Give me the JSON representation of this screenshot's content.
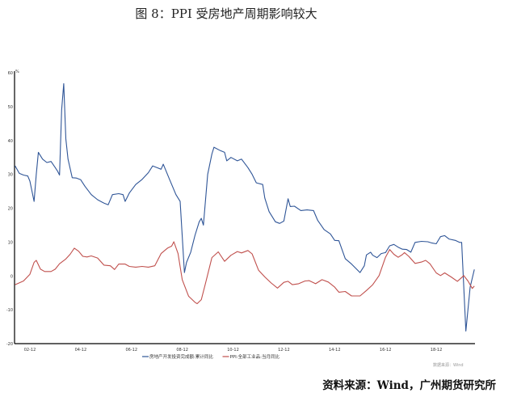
{
  "title": "图 8：PPI 受房地产周期影响较大",
  "source_note": "资料来源：Wind，广州期货研究所",
  "wind_note": "数据来源：Wind",
  "chart_data": {
    "type": "line",
    "title": "图 8：PPI 受房地产周期影响较大",
    "xlabel": "",
    "ylabel": "%",
    "ylim": [
      -20,
      60
    ],
    "yticks": [
      60,
      50,
      40,
      30,
      20,
      10,
      0,
      -10,
      -20
    ],
    "xticks": [
      "02-12",
      "04-12",
      "06-12",
      "08-12",
      "10-12",
      "12-12",
      "14-12",
      "16-12",
      "18-12"
    ],
    "grid": false,
    "legend_position": "bottom",
    "colors": {
      "series_1": "#2f5597",
      "series_2": "#c0504d"
    },
    "series": [
      {
        "name": "房地产开发投资完成额:累计同比",
        "color": "#2f5597",
        "points": [
          [
            "2002-05",
            32.5
          ],
          [
            "2002-07",
            30.3
          ],
          [
            "2002-09",
            29.8
          ],
          [
            "2002-11",
            29.5
          ],
          [
            "2002-12",
            28.0
          ],
          [
            "2003-02",
            22.0
          ],
          [
            "2003-03",
            30.0
          ],
          [
            "2003-04",
            36.5
          ],
          [
            "2003-06",
            34.5
          ],
          [
            "2003-08",
            33.5
          ],
          [
            "2003-10",
            33.8
          ],
          [
            "2003-12",
            32.0
          ],
          [
            "2004-01",
            31.0
          ],
          [
            "2004-02",
            29.8
          ],
          [
            "2004-03",
            49.0
          ],
          [
            "2004-04",
            56.8
          ],
          [
            "2004-05",
            40.5
          ],
          [
            "2004-06",
            34.5
          ],
          [
            "2004-08",
            29.0
          ],
          [
            "2004-10",
            28.9
          ],
          [
            "2004-12",
            28.4
          ],
          [
            "2005-02",
            26.5
          ],
          [
            "2005-05",
            24.0
          ],
          [
            "2005-08",
            22.5
          ],
          [
            "2005-11",
            21.5
          ],
          [
            "2006-01",
            21.0
          ],
          [
            "2006-03",
            24.0
          ],
          [
            "2006-06",
            24.3
          ],
          [
            "2006-08",
            24.0
          ],
          [
            "2006-09",
            22.0
          ],
          [
            "2006-11",
            24.5
          ],
          [
            "2007-02",
            27.0
          ],
          [
            "2007-05",
            28.5
          ],
          [
            "2007-08",
            30.5
          ],
          [
            "2007-10",
            32.5
          ],
          [
            "2007-12",
            32.0
          ],
          [
            "2008-02",
            31.5
          ],
          [
            "2008-03",
            33.0
          ],
          [
            "2008-06",
            28.5
          ],
          [
            "2008-09",
            24.0
          ],
          [
            "2008-11",
            22.0
          ],
          [
            "2009-01",
            1.0
          ],
          [
            "2009-02",
            4.0
          ],
          [
            "2009-04",
            7.0
          ],
          [
            "2009-06",
            12.0
          ],
          [
            "2009-08",
            16.0
          ],
          [
            "2009-09",
            17.0
          ],
          [
            "2009-10",
            15.0
          ],
          [
            "2009-12",
            30.0
          ],
          [
            "2010-02",
            36.0
          ],
          [
            "2010-03",
            38.0
          ],
          [
            "2010-06",
            37.0
          ],
          [
            "2010-08",
            36.5
          ],
          [
            "2010-09",
            34.0
          ],
          [
            "2010-11",
            35.0
          ],
          [
            "2011-02",
            34.0
          ],
          [
            "2011-04",
            34.5
          ],
          [
            "2011-07",
            32.0
          ],
          [
            "2011-09",
            30.0
          ],
          [
            "2011-11",
            27.5
          ],
          [
            "2012-02",
            27.0
          ],
          [
            "2012-03",
            23.0
          ],
          [
            "2012-05",
            19.0
          ],
          [
            "2012-08",
            16.0
          ],
          [
            "2012-10",
            15.5
          ],
          [
            "2012-12",
            16.2
          ],
          [
            "2013-02",
            22.8
          ],
          [
            "2013-03",
            20.5
          ],
          [
            "2013-05",
            20.6
          ],
          [
            "2013-08",
            19.3
          ],
          [
            "2013-11",
            19.5
          ],
          [
            "2014-02",
            19.3
          ],
          [
            "2014-04",
            16.4
          ],
          [
            "2014-07",
            13.7
          ],
          [
            "2014-10",
            12.4
          ],
          [
            "2014-12",
            10.5
          ],
          [
            "2015-02",
            10.4
          ],
          [
            "2015-05",
            5.1
          ],
          [
            "2015-08",
            3.5
          ],
          [
            "2015-12",
            1.0
          ],
          [
            "2016-02",
            3.0
          ],
          [
            "2016-03",
            6.2
          ],
          [
            "2016-05",
            7.0
          ],
          [
            "2016-06",
            6.1
          ],
          [
            "2016-08",
            5.4
          ],
          [
            "2016-10",
            6.6
          ],
          [
            "2016-12",
            6.9
          ],
          [
            "2017-02",
            8.9
          ],
          [
            "2017-04",
            9.3
          ],
          [
            "2017-06",
            8.5
          ],
          [
            "2017-08",
            7.9
          ],
          [
            "2017-10",
            7.8
          ],
          [
            "2017-12",
            7.0
          ],
          [
            "2018-02",
            9.9
          ],
          [
            "2018-05",
            10.2
          ],
          [
            "2018-08",
            10.1
          ],
          [
            "2018-10",
            9.7
          ],
          [
            "2018-12",
            9.5
          ],
          [
            "2019-02",
            11.6
          ],
          [
            "2019-04",
            11.9
          ],
          [
            "2019-06",
            10.9
          ],
          [
            "2019-09",
            10.5
          ],
          [
            "2019-11",
            9.9
          ],
          [
            "2019-12",
            9.9
          ],
          [
            "2020-02",
            -16.3
          ],
          [
            "2020-04",
            -3.3
          ],
          [
            "2020-06",
            1.9
          ]
        ]
      },
      {
        "name": "PPI:全部工业品:当月同比",
        "color": "#c0504d",
        "points": [
          [
            "2002-05",
            -2.6
          ],
          [
            "2002-09",
            -1.5
          ],
          [
            "2002-12",
            0.5
          ],
          [
            "2003-02",
            4.0
          ],
          [
            "2003-03",
            4.6
          ],
          [
            "2003-05",
            2.0
          ],
          [
            "2003-07",
            1.3
          ],
          [
            "2003-10",
            1.3
          ],
          [
            "2003-12",
            2.0
          ],
          [
            "2004-02",
            3.6
          ],
          [
            "2004-05",
            5.0
          ],
          [
            "2004-07",
            6.4
          ],
          [
            "2004-09",
            8.2
          ],
          [
            "2004-11",
            7.3
          ],
          [
            "2005-01",
            5.8
          ],
          [
            "2005-03",
            5.6
          ],
          [
            "2005-05",
            5.9
          ],
          [
            "2005-08",
            5.3
          ],
          [
            "2005-11",
            3.2
          ],
          [
            "2006-02",
            3.0
          ],
          [
            "2006-04",
            1.9
          ],
          [
            "2006-06",
            3.5
          ],
          [
            "2006-09",
            3.5
          ],
          [
            "2006-11",
            2.8
          ],
          [
            "2007-02",
            2.6
          ],
          [
            "2007-05",
            2.8
          ],
          [
            "2007-08",
            2.6
          ],
          [
            "2007-11",
            3.0
          ],
          [
            "2008-02",
            6.6
          ],
          [
            "2008-05",
            8.2
          ],
          [
            "2008-07",
            8.8
          ],
          [
            "2008-08",
            10.1
          ],
          [
            "2008-10",
            6.6
          ],
          [
            "2008-12",
            -1.1
          ],
          [
            "2009-03",
            -6.0
          ],
          [
            "2009-06",
            -7.8
          ],
          [
            "2009-07",
            -8.2
          ],
          [
            "2009-09",
            -7.0
          ],
          [
            "2009-11",
            -2.1
          ],
          [
            "2010-02",
            5.4
          ],
          [
            "2010-05",
            7.1
          ],
          [
            "2010-08",
            4.3
          ],
          [
            "2010-11",
            6.1
          ],
          [
            "2011-02",
            7.2
          ],
          [
            "2011-04",
            6.8
          ],
          [
            "2011-07",
            7.5
          ],
          [
            "2011-09",
            6.5
          ],
          [
            "2011-12",
            1.7
          ],
          [
            "2012-03",
            -0.3
          ],
          [
            "2012-06",
            -2.1
          ],
          [
            "2012-09",
            -3.6
          ],
          [
            "2012-12",
            -1.9
          ],
          [
            "2013-02",
            -1.6
          ],
          [
            "2013-04",
            -2.6
          ],
          [
            "2013-07",
            -2.3
          ],
          [
            "2013-10",
            -1.5
          ],
          [
            "2013-12",
            -1.4
          ],
          [
            "2014-03",
            -2.3
          ],
          [
            "2014-06",
            -1.1
          ],
          [
            "2014-09",
            -1.8
          ],
          [
            "2014-12",
            -3.3
          ],
          [
            "2015-02",
            -4.8
          ],
          [
            "2015-05",
            -4.6
          ],
          [
            "2015-08",
            -5.9
          ],
          [
            "2015-12",
            -5.9
          ],
          [
            "2016-03",
            -4.3
          ],
          [
            "2016-06",
            -2.6
          ],
          [
            "2016-09",
            0.1
          ],
          [
            "2016-12",
            5.5
          ],
          [
            "2017-02",
            7.8
          ],
          [
            "2017-04",
            6.4
          ],
          [
            "2017-06",
            5.5
          ],
          [
            "2017-08",
            6.3
          ],
          [
            "2017-09",
            6.9
          ],
          [
            "2017-11",
            5.8
          ],
          [
            "2018-02",
            3.7
          ],
          [
            "2018-05",
            4.1
          ],
          [
            "2018-07",
            4.6
          ],
          [
            "2018-09",
            3.6
          ],
          [
            "2018-12",
            0.9
          ],
          [
            "2019-02",
            0.1
          ],
          [
            "2019-04",
            0.9
          ],
          [
            "2019-07",
            -0.3
          ],
          [
            "2019-10",
            -1.6
          ],
          [
            "2019-12",
            -0.5
          ],
          [
            "2020-01",
            0.1
          ],
          [
            "2020-03",
            -1.5
          ],
          [
            "2020-05",
            -3.7
          ],
          [
            "2020-06",
            -3.0
          ]
        ]
      }
    ]
  }
}
